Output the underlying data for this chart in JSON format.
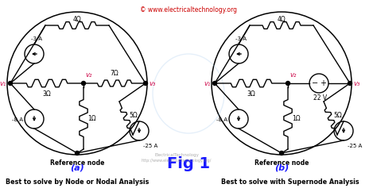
{
  "watermark": "© www.electricaltechnology.org",
  "watermark_color": "#cc0000",
  "fig_label": "Fig 1",
  "fig_label_color": "#1a1aff",
  "subtitle_a": "Best to solve by Node or Nodal Analysis",
  "subtitle_b": "Best to solve with Supernode Analysis",
  "subtitle_color": "#000000",
  "label_a": "(a)",
  "label_b": "(b)",
  "label_color": "#1a1aff",
  "background": "#ffffff",
  "cc": "#000000",
  "node_label_color": "#cc0044",
  "r1": "4Ω",
  "r2": "3Ω",
  "r3": "7Ω",
  "r4": "1Ω",
  "r5": "5Ω",
  "cs1_lbl": "-3 A",
  "cs2_lbl": "-8 A",
  "cs3_lbl": "-25 A",
  "v1_lbl": "v₁",
  "v2_lbl": "v₂",
  "v3_lbl": "v₃",
  "r1b": "4Ω",
  "r2b": "3Ω",
  "r4b": "1Ω",
  "r5b": "5Ω",
  "cs1b_lbl": "-3 A",
  "cs2b_lbl": "-8 A",
  "cs3b_lbl": "-25 A",
  "vs_lbl": "22 V",
  "v1b_lbl": "v₁",
  "v2b_lbl": "v₂",
  "v3b_lbl": "v₃",
  "ref_node": "Reference node",
  "electricaltech_text": "ElectricalTechnology",
  "electricaltech_url": "http://www.electricaltechnology.org/"
}
